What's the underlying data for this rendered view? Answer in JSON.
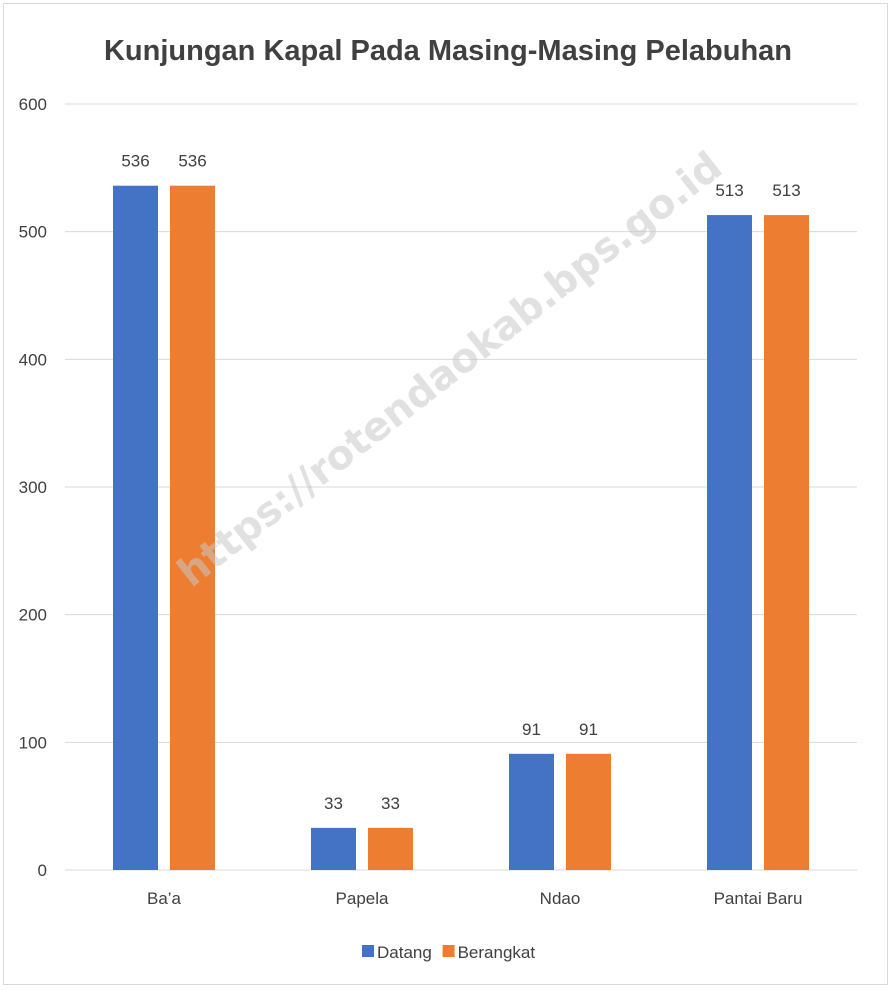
{
  "chart_data": {
    "type": "bar",
    "title": "Kunjungan Kapal Pada Masing-Masing Pelabuhan",
    "categories": [
      "Ba’a",
      "Papela",
      "Ndao",
      "Pantai Baru"
    ],
    "series": [
      {
        "name": "Datang",
        "values": [
          536,
          33,
          91,
          513
        ],
        "color": "#4472C4"
      },
      {
        "name": "Berangkat",
        "values": [
          536,
          33,
          91,
          513
        ],
        "color": "#ED7D31"
      }
    ],
    "ylim": [
      0,
      600
    ],
    "yticks": [
      0,
      100,
      200,
      300,
      400,
      500,
      600
    ],
    "grid": true,
    "legend_position": "bottom",
    "watermark": "https://rotendaokab.bps.go.id"
  }
}
